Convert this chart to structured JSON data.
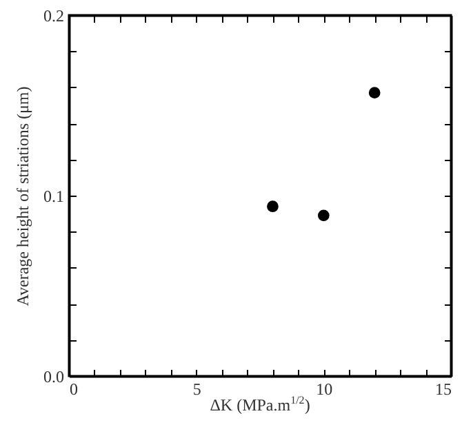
{
  "chart_data": {
    "type": "scatter",
    "xlabel": "ΔK (MPa.m$^{1/2}$)",
    "ylabel": "Average height of striations (μm)",
    "x": [
      8,
      10,
      12
    ],
    "series": [
      {
        "color": "#000000",
        "values": [
          0.094,
          0.089,
          0.157
        ]
      }
    ],
    "marker": "circle",
    "grid": false,
    "xlim": [
      0,
      15
    ],
    "ylim": [
      0,
      0.2
    ],
    "xticks": [
      0,
      {
        "value": 1,
        "label": null
      },
      {
        "value": 2,
        "label": null
      },
      {
        "value": 3,
        "label": null
      },
      {
        "value": 4,
        "label": null
      },
      5,
      {
        "value": 6,
        "label": null
      },
      {
        "value": 7,
        "label": null
      },
      {
        "value": 8,
        "label": null
      },
      {
        "value": 9,
        "label": null
      },
      10,
      {
        "value": 11,
        "label": null
      },
      {
        "value": 12,
        "label": null
      },
      {
        "value": 13,
        "label": null
      },
      {
        "value": 14,
        "label": null
      },
      15
    ],
    "yticks": [
      {
        "value": 0,
        "label": "0.0"
      },
      {
        "value": 0.02,
        "label": null
      },
      {
        "value": 0.04,
        "label": null
      },
      {
        "value": 0.06,
        "label": null
      },
      {
        "value": 0.08,
        "label": null
      },
      0.1,
      {
        "value": 0.12,
        "label": null
      },
      {
        "value": 0.14,
        "label": null
      },
      {
        "value": 0.16,
        "label": null
      },
      {
        "value": 0.18,
        "label": null
      },
      0.2
    ]
  }
}
